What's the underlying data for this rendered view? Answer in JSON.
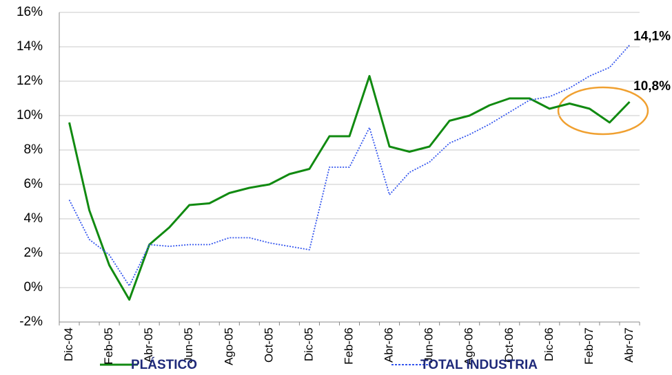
{
  "chart_data": {
    "type": "line",
    "categories": [
      "Dic-04",
      null,
      "Feb-05",
      null,
      "Abr-05",
      null,
      "Jun-05",
      null,
      "Ago-05",
      null,
      "Oct-05",
      null,
      "Dic-05",
      null,
      "Feb-06",
      null,
      "Abr-06",
      null,
      "Jun-06",
      null,
      "Ago-06",
      null,
      "Oct-06",
      null,
      "Dic-06",
      null,
      "Feb-07",
      null,
      "Abr-07"
    ],
    "series": [
      {
        "name": "PLÁSTICO",
        "color": "#118a11",
        "dash": "solid",
        "values": [
          9.6,
          4.5,
          1.3,
          -0.7,
          2.5,
          3.5,
          4.8,
          4.9,
          5.5,
          5.8,
          6.0,
          6.6,
          6.9,
          8.8,
          8.8,
          12.3,
          8.2,
          7.9,
          8.2,
          9.7,
          10.0,
          10.6,
          11.0,
          11.0,
          10.4,
          10.7,
          10.4,
          9.6,
          10.8
        ],
        "value_labels": [
          null,
          null,
          null,
          null,
          null,
          null,
          null,
          null,
          null,
          null,
          null,
          null,
          null,
          null,
          null,
          null,
          null,
          null,
          null,
          null,
          null,
          null,
          null,
          null,
          null,
          null,
          null,
          null,
          "10,8%"
        ]
      },
      {
        "name": "TOTAL INDUSTRIA",
        "color": "#3355ee",
        "dash": "dotted",
        "values": [
          5.1,
          2.8,
          1.9,
          0.1,
          2.5,
          2.4,
          2.5,
          2.5,
          2.9,
          2.9,
          2.6,
          2.4,
          2.2,
          7.0,
          7.0,
          9.3,
          5.4,
          6.7,
          7.3,
          8.4,
          8.9,
          9.5,
          10.2,
          10.9,
          11.1,
          11.6,
          12.3,
          12.8,
          14.1
        ],
        "value_labels": [
          null,
          null,
          null,
          null,
          null,
          null,
          null,
          null,
          null,
          null,
          null,
          null,
          null,
          null,
          null,
          null,
          null,
          null,
          null,
          null,
          null,
          null,
          null,
          null,
          null,
          null,
          null,
          null,
          "14,1%"
        ]
      }
    ],
    "ylim": [
      -2,
      16
    ],
    "yticks": [
      {
        "value": -2,
        "label": "-2%"
      },
      {
        "value": 0,
        "label": "0%"
      },
      {
        "value": 2,
        "label": "2%"
      },
      {
        "value": 4,
        "label": "4%"
      },
      {
        "value": 6,
        "label": "6%"
      },
      {
        "value": 8,
        "label": "8%"
      },
      {
        "value": 10,
        "label": "10%"
      },
      {
        "value": 12,
        "label": "12%"
      },
      {
        "value": 14,
        "label": "14%"
      },
      {
        "value": 16,
        "label": "16%"
      }
    ],
    "grid": true,
    "legend": "bottom"
  }
}
